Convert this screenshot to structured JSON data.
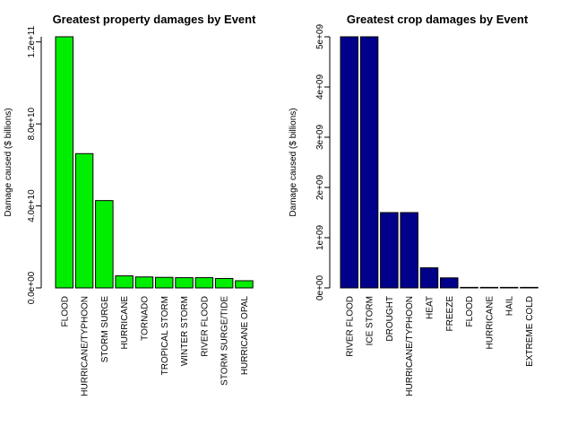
{
  "chart_data": [
    {
      "type": "bar",
      "title": "Greatest property damages by Event",
      "xlabel": "",
      "ylabel": "Damage caused ($ billions)",
      "categories": [
        "FLOOD",
        "HURRICANE/TYPHOON",
        "STORM SURGE",
        "HURRICANE",
        "TORNADO",
        "TROPICAL STORM",
        "WINTER STORM",
        "RIVER FLOOD",
        "STORM SURGE/TIDE",
        "HURRICANE OPAL"
      ],
      "values": [
        122500000000,
        65500000000,
        42600000000,
        5880000000,
        5350000000,
        5150000000,
        5000000000,
        5000000000,
        4600000000,
        3500000000
      ],
      "ylim": [
        0,
        122500000000
      ],
      "yticks": [
        0,
        40000000000,
        80000000000,
        120000000000
      ],
      "ytick_labels": [
        "0.0e+00",
        "4.0e+10",
        "8.0e+10",
        "1.2e+11"
      ],
      "bar_color": "#00ee00",
      "grid": false
    },
    {
      "type": "bar",
      "title": "Greatest crop damages by Event",
      "xlabel": "",
      "ylabel": "Damage caused ($ billions)",
      "categories": [
        "RIVER FLOOD",
        "ICE STORM",
        "DROUGHT",
        "HURRICANE/TYPHOON",
        "HEAT",
        "FREEZE",
        "FLOOD",
        "HURRICANE",
        "HAIL",
        "EXTREME COLD"
      ],
      "values": [
        5000000000,
        5000000000,
        1500000000,
        1500000000,
        400000000,
        200000000,
        10000000,
        5000000,
        3000000,
        2000000
      ],
      "ylim": [
        0,
        5000000000
      ],
      "yticks": [
        0,
        1000000000,
        2000000000,
        3000000000,
        4000000000,
        5000000000
      ],
      "ytick_labels": [
        "0e+00",
        "1e+09",
        "2e+09",
        "3e+09",
        "4e+09",
        "5e+09"
      ],
      "bar_color": "#00008b",
      "grid": false
    }
  ]
}
